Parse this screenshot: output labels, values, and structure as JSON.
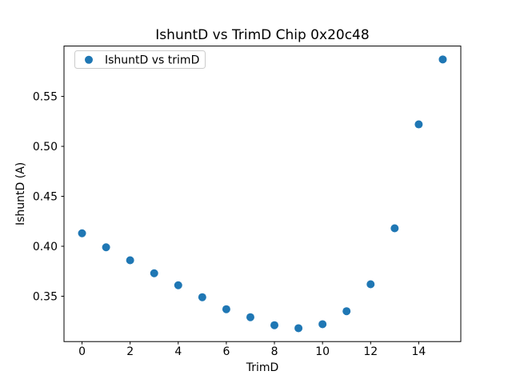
{
  "figure": {
    "background": "#ffffff",
    "spine_color": "#000000",
    "text_color": "#000000"
  },
  "chart_data": {
    "type": "scatter",
    "title": "IshuntD vs TrimD Chip 0x20c48",
    "xlabel": "TrimD",
    "ylabel": "IshuntD (A)",
    "legend": {
      "label": "IshuntD vs trimD",
      "position": "upper left",
      "border_color": "#cccccc",
      "background": "#ffffff"
    },
    "series": [
      {
        "name": "IshuntD vs trimD",
        "marker": "circle",
        "marker_color": "#1f77b4",
        "x": [
          0,
          1,
          2,
          3,
          4,
          5,
          6,
          7,
          8,
          9,
          10,
          11,
          12,
          13,
          14,
          15
        ],
        "y": [
          0.413,
          0.399,
          0.386,
          0.373,
          0.361,
          0.349,
          0.337,
          0.329,
          0.321,
          0.318,
          0.322,
          0.335,
          0.362,
          0.418,
          0.522,
          0.587
        ]
      }
    ],
    "xlim": [
      -0.75,
      15.75
    ],
    "ylim": [
      0.3046,
      0.6004
    ],
    "xticks": [
      0,
      2,
      4,
      6,
      8,
      10,
      12,
      14
    ],
    "yticks": [
      0.35,
      0.4,
      0.45,
      0.5,
      0.55
    ],
    "grid": false
  }
}
